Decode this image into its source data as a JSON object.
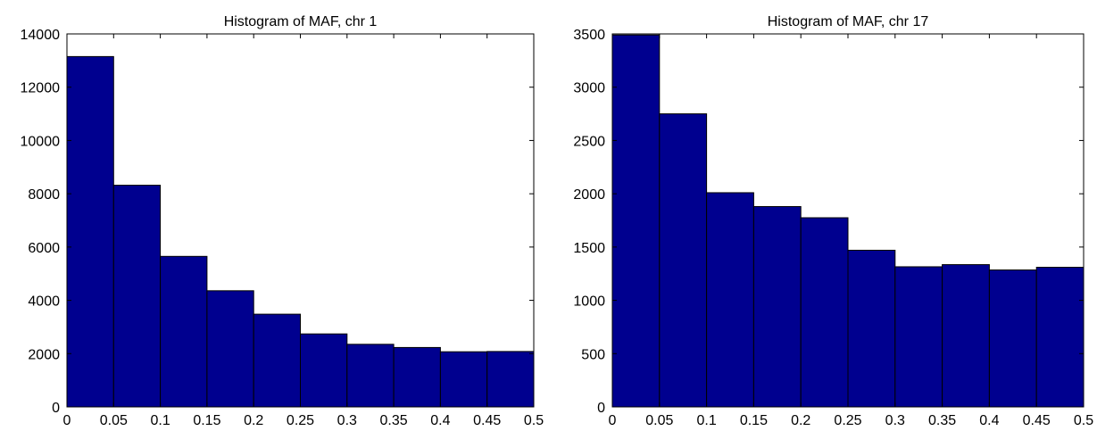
{
  "chart_data": [
    {
      "type": "bar",
      "title": "Histogram of MAF, chr 1",
      "xlabel": "",
      "ylabel": "",
      "bin_edges": [
        0,
        0.05,
        0.1,
        0.15,
        0.2,
        0.25,
        0.3,
        0.35,
        0.4,
        0.45,
        0.5
      ],
      "values": [
        13150,
        8320,
        5650,
        4360,
        3480,
        2740,
        2350,
        2230,
        2070,
        2080
      ],
      "xlim": [
        0,
        0.5
      ],
      "ylim": [
        0,
        14000
      ],
      "xticks": [
        "0",
        "0.05",
        "0.1",
        "0.15",
        "0.2",
        "0.25",
        "0.3",
        "0.35",
        "0.4",
        "0.45",
        "0.5"
      ],
      "yticks": [
        "0",
        "2000",
        "4000",
        "6000",
        "8000",
        "10000",
        "12000",
        "14000"
      ],
      "bar_color": "#00008f",
      "grid": false
    },
    {
      "type": "bar",
      "title": "Histogram of MAF, chr 17",
      "xlabel": "",
      "ylabel": "",
      "bin_edges": [
        0,
        0.05,
        0.1,
        0.15,
        0.2,
        0.25,
        0.3,
        0.35,
        0.4,
        0.45,
        0.5
      ],
      "values": [
        3490,
        2750,
        2010,
        1880,
        1775,
        1470,
        1315,
        1335,
        1285,
        1310
      ],
      "xlim": [
        0,
        0.5
      ],
      "ylim": [
        0,
        3500
      ],
      "xticks": [
        "0",
        "0.05",
        "0.1",
        "0.15",
        "0.2",
        "0.25",
        "0.3",
        "0.35",
        "0.4",
        "0.45",
        "0.5"
      ],
      "yticks": [
        "0",
        "500",
        "1000",
        "1500",
        "2000",
        "2500",
        "3000",
        "3500"
      ],
      "bar_color": "#00008f",
      "grid": false
    }
  ]
}
